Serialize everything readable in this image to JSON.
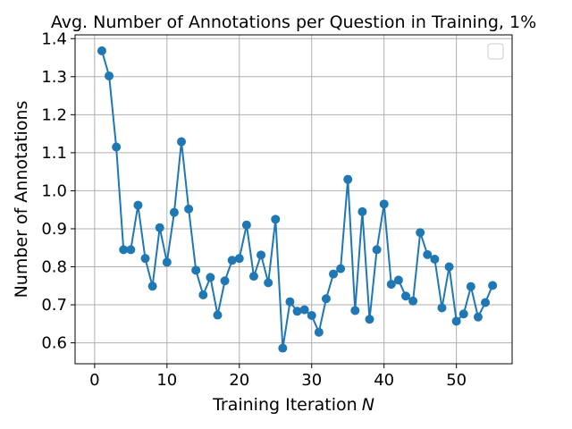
{
  "chart_data": {
    "type": "line",
    "title": "Avg. Number of Annotations per Question in Training, 1%",
    "xlabel": "Training Iteration",
    "xlabel_var": "N",
    "ylabel": "Number of Annotations",
    "xlim": [
      -2.7,
      57.7
    ],
    "ylim": [
      0.545,
      1.41
    ],
    "xticks": [
      0,
      10,
      20,
      30,
      40,
      50
    ],
    "yticks": [
      0.6,
      0.7,
      0.8,
      0.9,
      1.0,
      1.1,
      1.2,
      1.3,
      1.4
    ],
    "xtick_labels": [
      "0",
      "10",
      "20",
      "30",
      "40",
      "50"
    ],
    "ytick_labels": [
      "0.6",
      "0.7",
      "0.8",
      "0.9",
      "1.0",
      "1.1",
      "1.2",
      "1.3",
      "1.4"
    ],
    "grid": true,
    "legend": "upper right (empty)",
    "color": "#1f77b4",
    "marker": "circle",
    "x": [
      1,
      2,
      3,
      4,
      5,
      6,
      7,
      8,
      9,
      10,
      11,
      12,
      13,
      14,
      15,
      16,
      17,
      18,
      19,
      20,
      21,
      22,
      23,
      24,
      25,
      26,
      27,
      28,
      29,
      30,
      31,
      32,
      33,
      34,
      35,
      36,
      37,
      38,
      39,
      40,
      41,
      42,
      43,
      44,
      45,
      46,
      47,
      48,
      49,
      50,
      51,
      52,
      53,
      54,
      55
    ],
    "y": [
      1.368,
      1.302,
      1.115,
      0.845,
      0.845,
      0.962,
      0.822,
      0.749,
      0.903,
      0.812,
      0.943,
      1.129,
      0.952,
      0.791,
      0.726,
      0.772,
      0.673,
      0.763,
      0.817,
      0.822,
      0.91,
      0.775,
      0.831,
      0.758,
      0.925,
      0.586,
      0.708,
      0.683,
      0.687,
      0.672,
      0.628,
      0.716,
      0.781,
      0.795,
      1.03,
      0.685,
      0.945,
      0.662,
      0.845,
      0.965,
      0.754,
      0.765,
      0.723,
      0.71,
      0.89,
      0.832,
      0.82,
      0.692,
      0.8,
      0.657,
      0.676,
      0.748,
      0.668,
      0.706,
      0.751
    ]
  }
}
